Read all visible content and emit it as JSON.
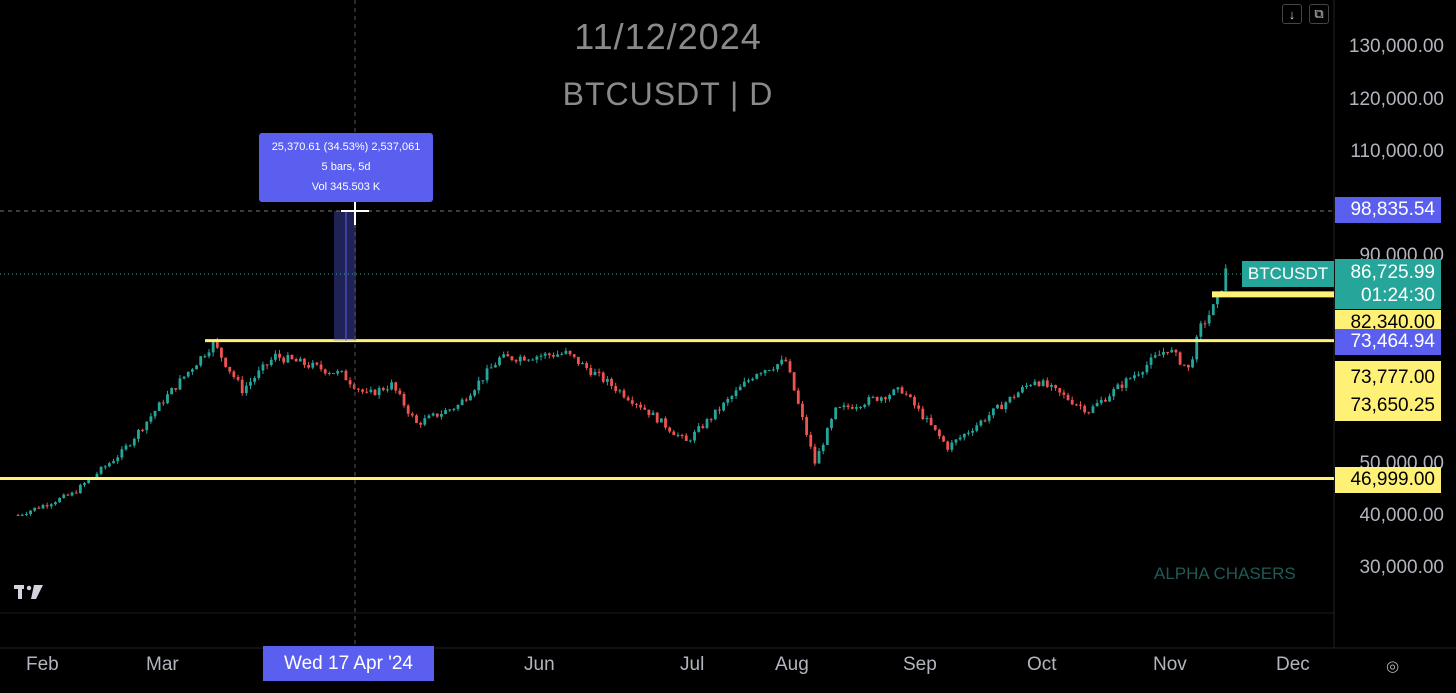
{
  "header": {
    "date": "11/12/2024",
    "symbol_interval": "BTCUSDT | D"
  },
  "toolbar": {
    "download_icon": "arrow-down-icon",
    "fullscreen_icon": "fullscreen-icon"
  },
  "watermark": "ALPHA CHASERS",
  "logo": "TV",
  "settings_icon": "gear-icon",
  "measure_tooltip": {
    "line1": "25,370.61 (34.53%) 2,537,061",
    "line2": "5 bars, 5d",
    "line3": "Vol 345.503 K"
  },
  "crosshair": {
    "date_label": "Wed 17 Apr '24",
    "price_label": "98,835.54"
  },
  "last_price": {
    "symbol": "BTCUSDT",
    "price": "86,725.99",
    "countdown": "01:24:30"
  },
  "price_axis": {
    "labels": [
      "130,000.00",
      "120,000.00",
      "110,000.00",
      "90,000.00",
      "50,000.00",
      "40,000.00",
      "30,000.00"
    ],
    "badges": [
      "82,340.00",
      "73,464.94",
      "73,777.00",
      "73,650.25",
      "46,999.00"
    ]
  },
  "time_axis": {
    "labels": [
      "Feb",
      "Mar",
      "Jun",
      "Jul",
      "Aug",
      "Sep",
      "Oct",
      "Nov",
      "Dec"
    ]
  },
  "colors": {
    "up": "#26a69a",
    "down": "#ef5350",
    "level": "#fff176",
    "accent": "#5b5ff0"
  },
  "chart_data": {
    "type": "candlestick",
    "interval": "D",
    "symbol": "BTCUSDT",
    "horizontal_levels": [
      82340.0,
      73464.94,
      46999.0
    ],
    "price_path": [
      [
        "2024-01-26",
        40000
      ],
      [
        "2024-02-08",
        44000
      ],
      [
        "2024-02-20",
        52000
      ],
      [
        "2024-03-01",
        62000
      ],
      [
        "2024-03-13",
        73000
      ],
      [
        "2024-03-20",
        64000
      ],
      [
        "2024-03-28",
        70500
      ],
      [
        "2024-04-13",
        67000
      ],
      [
        "2024-04-19",
        63000
      ],
      [
        "2024-04-25",
        65000
      ],
      [
        "2024-05-01",
        57500
      ],
      [
        "2024-05-11",
        61000
      ],
      [
        "2024-05-21",
        70000
      ],
      [
        "2024-06-06",
        71000
      ],
      [
        "2024-06-24",
        61000
      ],
      [
        "2024-07-05",
        54000
      ],
      [
        "2024-07-22",
        67500
      ],
      [
        "2024-07-29",
        69500
      ],
      [
        "2024-08-05",
        50000
      ],
      [
        "2024-08-10",
        60000
      ],
      [
        "2024-08-26",
        64000
      ],
      [
        "2024-09-06",
        53000
      ],
      [
        "2024-09-27",
        66000
      ],
      [
        "2024-10-10",
        60000
      ],
      [
        "2024-10-29",
        72000
      ],
      [
        "2024-11-03",
        68000
      ],
      [
        "2024-11-06",
        76000
      ],
      [
        "2024-11-10",
        81000
      ],
      [
        "2024-11-12",
        86725.99
      ]
    ]
  }
}
